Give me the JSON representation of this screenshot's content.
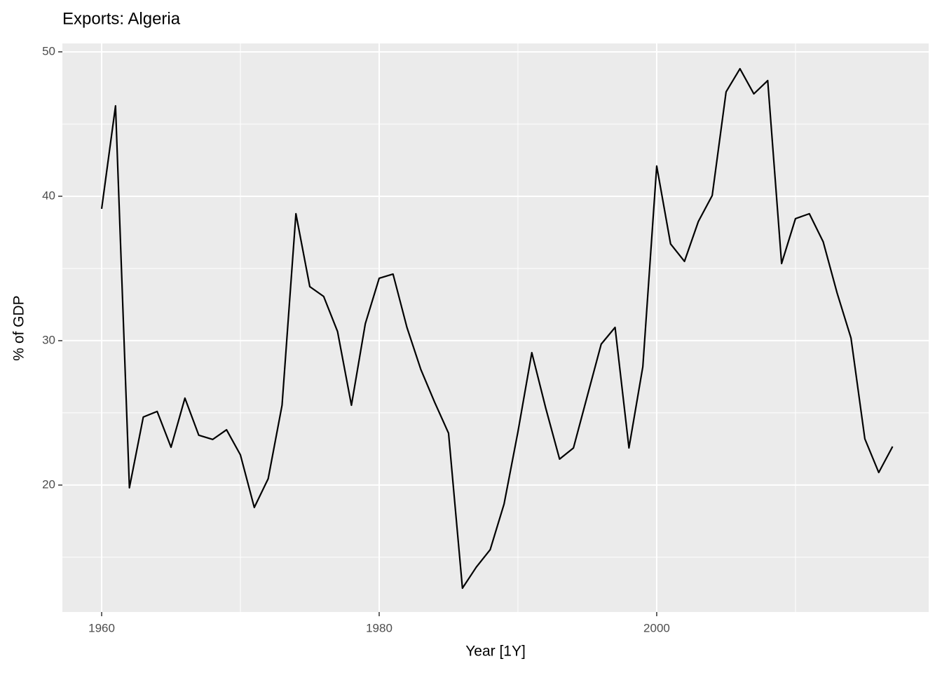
{
  "chart_data": {
    "type": "line",
    "title": "Exports: Algeria",
    "x_label": "Year [1Y]",
    "y_label": "% of GDP",
    "x": [
      1960,
      1961,
      1962,
      1963,
      1964,
      1965,
      1966,
      1967,
      1968,
      1969,
      1970,
      1971,
      1972,
      1973,
      1974,
      1975,
      1976,
      1977,
      1978,
      1979,
      1980,
      1981,
      1982,
      1983,
      1984,
      1985,
      1986,
      1987,
      1988,
      1989,
      1990,
      1991,
      1992,
      1993,
      1994,
      1995,
      1996,
      1997,
      1998,
      1999,
      2000,
      2001,
      2002,
      2003,
      2004,
      2005,
      2006,
      2007,
      2008,
      2009,
      2010,
      2011,
      2012,
      2013,
      2014,
      2015,
      2016,
      2017
    ],
    "series": [
      {
        "name": "Exports",
        "color": "#000000",
        "values": [
          39.13,
          46.26,
          19.81,
          24.71,
          25.1,
          22.62,
          26.02,
          23.45,
          23.16,
          23.83,
          22.09,
          18.45,
          20.44,
          25.53,
          38.79,
          33.74,
          33.06,
          30.63,
          25.53,
          31.17,
          34.32,
          34.61,
          30.92,
          28.01,
          25.73,
          23.59,
          12.86,
          14.32,
          15.53,
          18.69,
          23.69,
          29.17,
          25.34,
          21.8,
          22.57,
          26.17,
          29.76,
          30.92,
          22.57,
          28.2,
          42.09,
          36.7,
          35.49,
          38.25,
          40.05,
          47.23,
          48.83,
          47.09,
          48.01,
          35.34,
          38.45,
          38.79,
          36.84,
          33.3,
          30.19,
          23.2,
          20.87,
          22.67
        ]
      }
    ],
    "xlim": [
      1957.17,
      2019.6
    ],
    "ylim": [
      11.21,
      50.58
    ],
    "xticks": [
      1960,
      1980,
      2000
    ],
    "yticks": [
      20,
      30,
      40,
      50
    ],
    "xminor": [
      1970,
      1990,
      2010
    ],
    "yminor": [
      15,
      25,
      35,
      45
    ],
    "grid": true
  }
}
